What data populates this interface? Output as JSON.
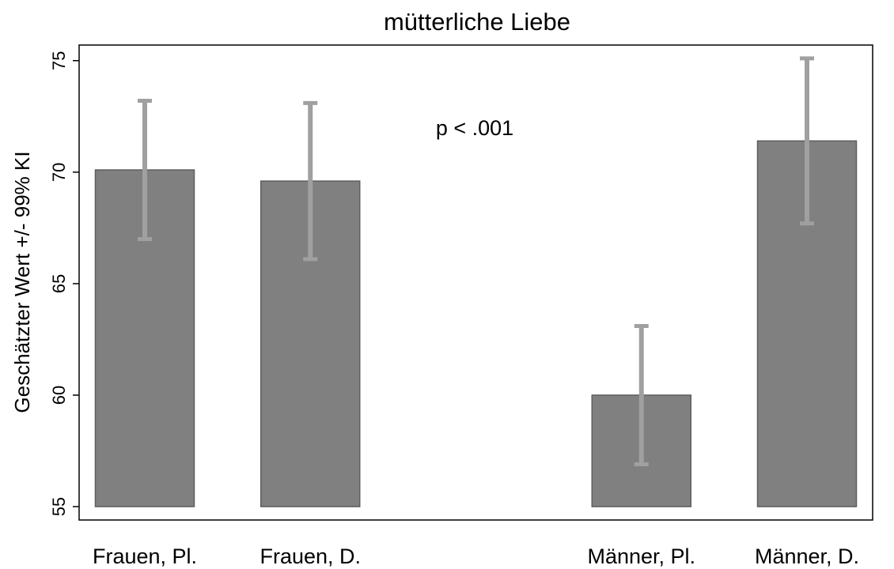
{
  "chart_data": {
    "type": "bar",
    "title": "mütterliche Liebe",
    "y_label": "Geschätzter Wert +/- 99% KI",
    "annotation": "p < .001",
    "categories": [
      "Frauen, Pl.",
      "Frauen, D.",
      null,
      "Männer, Pl.",
      "Männer, D."
    ],
    "values": [
      70.1,
      69.6,
      null,
      60.0,
      71.4
    ],
    "errors": [
      3.1,
      3.5,
      null,
      3.1,
      3.7
    ],
    "base": 55,
    "color": "#808080",
    "error_color": "#a0a0a0",
    "ylim": [
      54.4,
      75.7
    ],
    "yticks": [
      55,
      60,
      65,
      70,
      75
    ],
    "grid": false
  }
}
